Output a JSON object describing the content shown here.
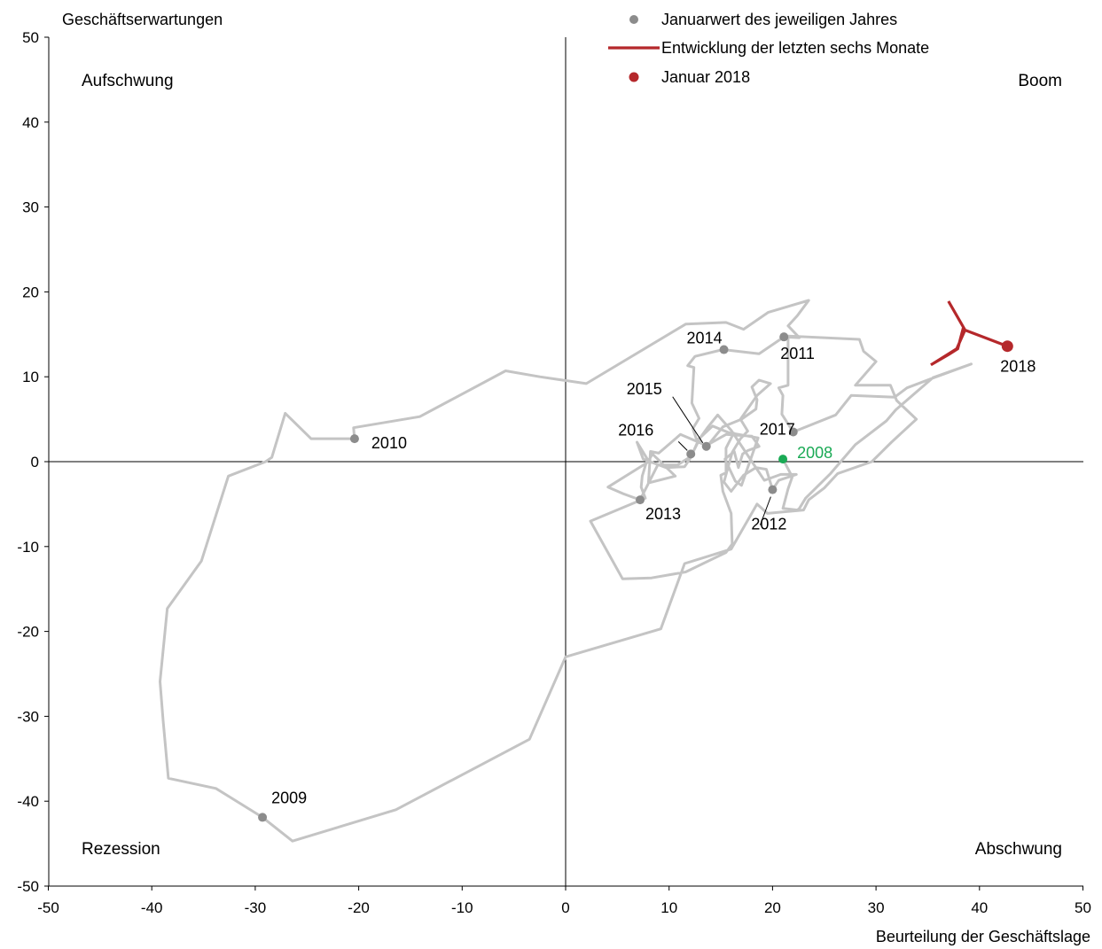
{
  "chart_data": {
    "type": "line",
    "title": "",
    "xlabel": "Beurteilung der Geschäftslage",
    "ylabel": "Geschäftserwartungen",
    "xlim": [
      -50,
      50
    ],
    "ylim": [
      -50,
      50
    ],
    "x_ticks": [
      -50,
      -40,
      -30,
      -20,
      -10,
      0,
      10,
      20,
      30,
      40,
      50
    ],
    "y_ticks": [
      -50,
      -40,
      -30,
      -20,
      -10,
      0,
      10,
      20,
      30,
      40,
      50
    ],
    "quadrants": {
      "top_left": "Aufschwung",
      "top_right": "Boom",
      "bottom_left": "Rezession",
      "bottom_right": "Abschwung"
    },
    "legend": {
      "placement": "top-center",
      "items": [
        {
          "label": "Januarwert des jeweiligen Jahres",
          "marker": "dot",
          "color": "#8c8c8c"
        },
        {
          "label": "Entwicklung der letzten sechs Monate",
          "marker": "line",
          "color": "#b5282b"
        },
        {
          "label": "Januar 2018",
          "marker": "dot",
          "color": "#b5282b"
        }
      ]
    },
    "colors": {
      "history": "#c4c4c4",
      "january": "#8c8c8c",
      "recent": "#b5282b",
      "start": "#1aaa55"
    },
    "history_path": [
      [
        21.0,
        0.3
      ],
      [
        21.9,
        -1.8
      ],
      [
        21.5,
        -3.2
      ],
      [
        21.0,
        -5.5
      ],
      [
        22.4,
        -5.7
      ],
      [
        22.6,
        -5.5
      ],
      [
        23.2,
        -4.3
      ],
      [
        25.6,
        -1.4
      ],
      [
        28.0,
        2.0
      ],
      [
        31.0,
        4.8
      ],
      [
        31.9,
        6.1
      ],
      [
        35.5,
        9.9
      ],
      [
        39.2,
        11.5
      ],
      [
        35.6,
        9.9
      ],
      [
        33.0,
        8.7
      ],
      [
        31.8,
        7.6
      ],
      [
        27.6,
        7.8
      ],
      [
        26.1,
        5.5
      ],
      [
        22.0,
        3.5
      ],
      [
        20.9,
        5.6
      ],
      [
        21.0,
        7.8
      ],
      [
        20.6,
        8.7
      ],
      [
        21.5,
        9.0
      ],
      [
        21.5,
        14.8
      ],
      [
        28.4,
        14.4
      ],
      [
        28.8,
        13.0
      ],
      [
        30.0,
        11.8
      ],
      [
        28.0,
        9.0
      ],
      [
        31.4,
        9.0
      ],
      [
        32.0,
        7.2
      ],
      [
        33.9,
        5.0
      ],
      [
        31.5,
        2.3
      ],
      [
        29.6,
        0.0
      ],
      [
        26.3,
        -1.4
      ],
      [
        25.0,
        -3.1
      ],
      [
        23.5,
        -4.5
      ],
      [
        23.0,
        -5.7
      ],
      [
        19.5,
        -6.1
      ],
      [
        18.5,
        -5.0
      ],
      [
        16.0,
        -10.3
      ],
      [
        11.5,
        -12.0
      ],
      [
        9.2,
        -19.7
      ],
      [
        0.0,
        -23.0
      ],
      [
        -3.5,
        -32.7
      ],
      [
        -16.4,
        -41.0
      ],
      [
        -26.4,
        -44.7
      ],
      [
        -29.3,
        -41.9
      ],
      [
        -33.8,
        -38.5
      ],
      [
        -38.4,
        -37.3
      ],
      [
        -38.9,
        -30.5
      ],
      [
        -39.2,
        -25.9
      ],
      [
        -38.5,
        -17.3
      ],
      [
        -35.2,
        -11.7
      ],
      [
        -32.6,
        -1.7
      ],
      [
        -29.0,
        0.0
      ],
      [
        -28.4,
        0.5
      ],
      [
        -27.1,
        5.7
      ],
      [
        -24.6,
        2.7
      ],
      [
        -20.4,
        2.7
      ],
      [
        -20.5,
        4.0
      ],
      [
        -14.1,
        5.3
      ],
      [
        -5.8,
        10.7
      ],
      [
        -2.5,
        10.0
      ],
      [
        2.0,
        9.2
      ],
      [
        11.6,
        16.2
      ],
      [
        15.5,
        16.4
      ],
      [
        17.2,
        15.6
      ],
      [
        19.6,
        17.6
      ],
      [
        23.5,
        19.0
      ],
      [
        22.4,
        17.2
      ],
      [
        21.5,
        16.0
      ],
      [
        22.6,
        14.6
      ],
      [
        21.1,
        14.7
      ],
      [
        18.7,
        12.7
      ],
      [
        15.2,
        13.2
      ],
      [
        12.5,
        12.4
      ],
      [
        11.8,
        11.3
      ],
      [
        12.4,
        11.1
      ],
      [
        12.2,
        6.9
      ],
      [
        12.9,
        5.1
      ],
      [
        12.3,
        3.9
      ],
      [
        12.6,
        2.8
      ],
      [
        13.6,
        1.7
      ],
      [
        15.2,
        4.1
      ],
      [
        17.0,
        5.0
      ],
      [
        18.4,
        6.2
      ],
      [
        18.5,
        7.3
      ],
      [
        18.0,
        8.8
      ],
      [
        18.7,
        9.6
      ],
      [
        19.8,
        9.2
      ],
      [
        18.5,
        7.8
      ],
      [
        16.9,
        5.0
      ],
      [
        17.6,
        3.6
      ],
      [
        16.9,
        2.7
      ],
      [
        16.1,
        1.1
      ],
      [
        15.3,
        -2.4
      ],
      [
        16.0,
        -3.5
      ],
      [
        17.2,
        -1.6
      ],
      [
        18.4,
        -0.7
      ],
      [
        19.4,
        -0.9
      ],
      [
        20.0,
        -3.3
      ],
      [
        20.6,
        -2.2
      ],
      [
        22.3,
        -1.5
      ],
      [
        20.8,
        -1.5
      ],
      [
        19.2,
        -2.2
      ],
      [
        16.0,
        3.7
      ],
      [
        14.7,
        5.5
      ],
      [
        13.7,
        4.0
      ],
      [
        13.0,
        2.8
      ],
      [
        12.1,
        0.6
      ],
      [
        10.8,
        -0.4
      ],
      [
        8.9,
        -0.4
      ],
      [
        7.2,
        -4.5
      ],
      [
        5.6,
        -3.8
      ],
      [
        4.1,
        -3.0
      ],
      [
        7.9,
        -0.1
      ],
      [
        8.4,
        0.9
      ],
      [
        10.6,
        -1.7
      ],
      [
        8.0,
        -2.5
      ],
      [
        8.2,
        1.2
      ],
      [
        9.0,
        1.0
      ],
      [
        11.1,
        3.2
      ],
      [
        13.6,
        1.9
      ],
      [
        15.5,
        3.2
      ],
      [
        18.0,
        3.0
      ],
      [
        18.7,
        1.8
      ],
      [
        17.6,
        1.3
      ],
      [
        17.1,
        0.9
      ],
      [
        16.7,
        -0.7
      ],
      [
        16.3,
        1.2
      ],
      [
        15.4,
        0.3
      ],
      [
        16.4,
        -2.3
      ],
      [
        17.0,
        -2.8
      ],
      [
        18.6,
        2.8
      ],
      [
        15.8,
        3.4
      ],
      [
        14.2,
        4.2
      ],
      [
        12.9,
        2.7
      ],
      [
        12.1,
        0.5
      ],
      [
        11.5,
        -0.6
      ],
      [
        9.7,
        -0.7
      ],
      [
        7.5,
        0.3
      ],
      [
        6.9,
        2.3
      ],
      [
        7.9,
        0.3
      ],
      [
        7.4,
        -1.7
      ],
      [
        7.3,
        -3.0
      ],
      [
        7.7,
        -4.3
      ],
      [
        2.4,
        -7.0
      ],
      [
        5.5,
        -13.8
      ],
      [
        8.3,
        -13.7
      ],
      [
        11.6,
        -13.0
      ],
      [
        15.5,
        -10.7
      ],
      [
        16.1,
        -9.7
      ],
      [
        16.0,
        -6.1
      ],
      [
        15.2,
        -3.5
      ],
      [
        15.0,
        -1.6
      ],
      [
        15.5,
        -1.3
      ],
      [
        15.5,
        1.6
      ],
      [
        16.3,
        3.5
      ]
    ],
    "january_points": [
      {
        "year": "2009",
        "x": -29.3,
        "y": -41.9
      },
      {
        "year": "2010",
        "x": -20.4,
        "y": 2.7
      },
      {
        "year": "2011",
        "x": 21.1,
        "y": 14.7
      },
      {
        "year": "2012",
        "x": 20.0,
        "y": -3.3
      },
      {
        "year": "2013",
        "x": 7.2,
        "y": -4.5
      },
      {
        "year": "2014",
        "x": 15.3,
        "y": 13.2
      },
      {
        "year": "2015",
        "x": 13.6,
        "y": 1.8
      },
      {
        "year": "2016",
        "x": 12.1,
        "y": 0.9
      },
      {
        "year": "2017",
        "x": 22.0,
        "y": 3.5
      }
    ],
    "start_point": {
      "year": "2008",
      "x": 21.0,
      "y": 0.3
    },
    "recent_path": [
      [
        37.0,
        18.9
      ],
      [
        38.6,
        15.5
      ],
      [
        37.8,
        13.3
      ],
      [
        35.3,
        11.4
      ],
      [
        37.0,
        12.6
      ],
      [
        37.9,
        13.3
      ],
      [
        38.4,
        15.6
      ],
      [
        42.7,
        13.6
      ]
    ],
    "recent_point": {
      "label": "2018",
      "x": 42.7,
      "y": 13.6
    }
  }
}
